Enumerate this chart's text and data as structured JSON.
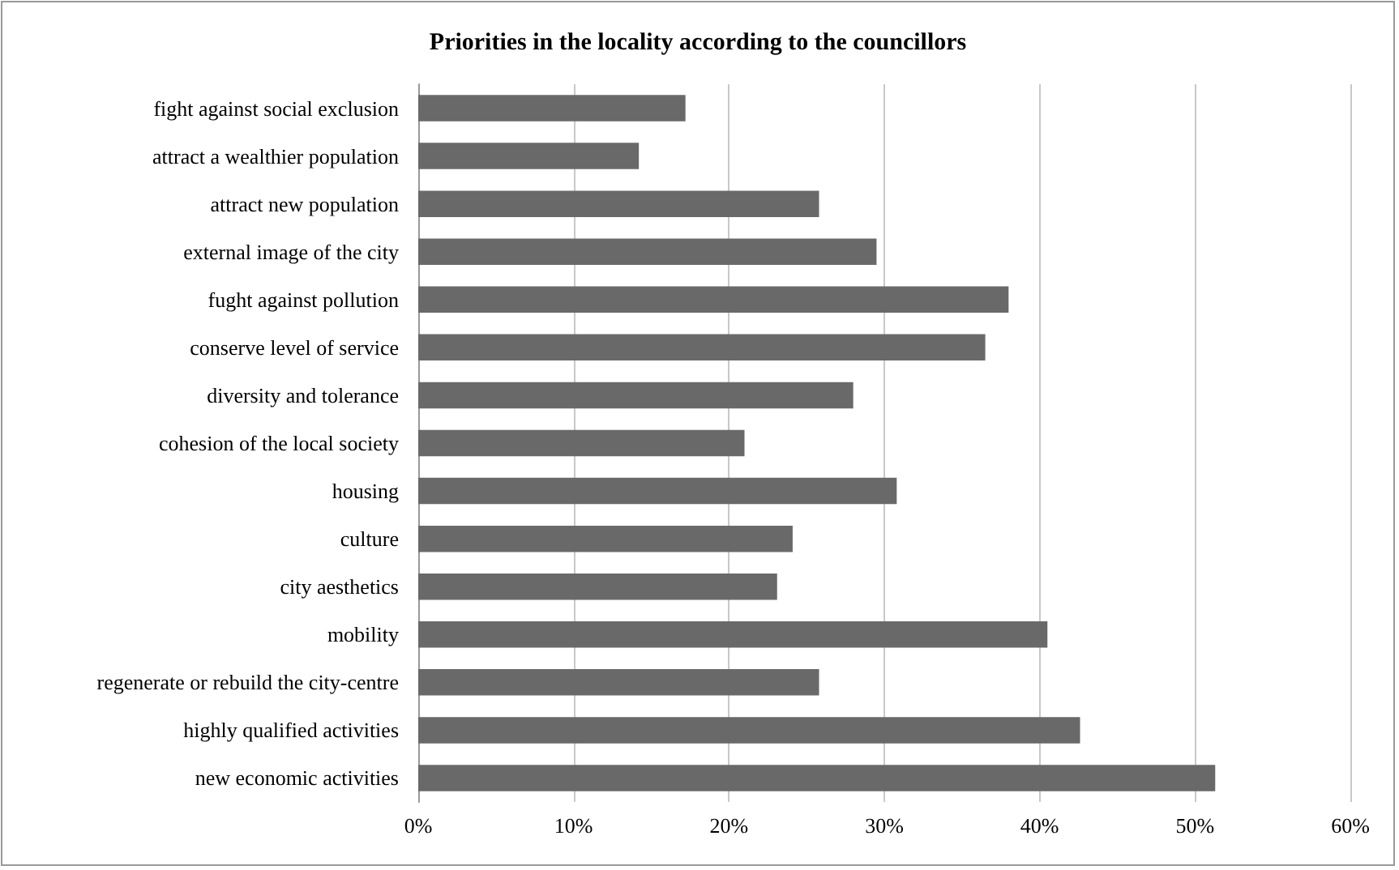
{
  "chart_data": {
    "type": "bar",
    "orientation": "horizontal",
    "title": "Priorities in the locality according to the councillors",
    "categories": [
      "fight against social exclusion",
      "attract a wealthier population",
      "attract new population",
      "external image of the city",
      "fught against pollution",
      "conserve level of service",
      "diversity and tolerance",
      "cohesion of the local society",
      "housing",
      "culture",
      "city aesthetics",
      "mobility",
      "regenerate or rebuild the city-centre",
      "highly qualified activities",
      "new economic activities"
    ],
    "values": [
      17.2,
      14.2,
      25.8,
      29.5,
      38.0,
      36.5,
      28.0,
      21.0,
      30.8,
      24.1,
      23.1,
      40.5,
      25.8,
      42.6,
      51.3
    ],
    "color": "#696969",
    "xlim": [
      0,
      60
    ],
    "xticks": [
      {
        "value": 0,
        "label": "0%"
      },
      {
        "value": 10,
        "label": "10%"
      },
      {
        "value": 20,
        "label": "20%"
      },
      {
        "value": 30,
        "label": "30%"
      },
      {
        "value": 40,
        "label": "40%"
      },
      {
        "value": 50,
        "label": "50%"
      },
      {
        "value": 60,
        "label": "60%"
      }
    ],
    "grid": "x"
  }
}
